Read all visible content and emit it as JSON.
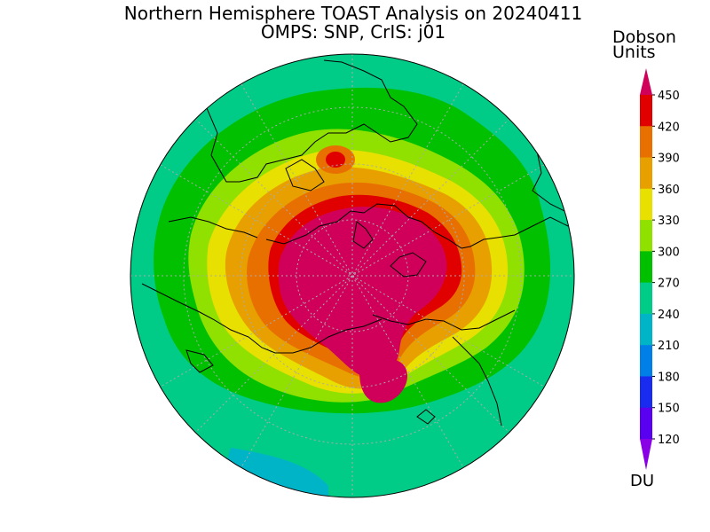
{
  "map": {
    "title_line1": "Northern Hemisphere TOAST Analysis on 20240411",
    "title_line2": "OMPS: SNP, CrIS: j01",
    "projection": "north-polar-stereographic",
    "ozone_classes": [
      {
        "label": "120",
        "color": "#8a00e6"
      },
      {
        "label": "150",
        "color": "#5a00f0"
      },
      {
        "label": "180",
        "color": "#1a2bf0"
      },
      {
        "label": "210",
        "color": "#0080e6"
      },
      {
        "label": "240",
        "color": "#00b4c8"
      },
      {
        "label": "270",
        "color": "#00cc88"
      },
      {
        "label": "300",
        "color": "#00c000"
      },
      {
        "label": "330",
        "color": "#90e000"
      },
      {
        "label": "360",
        "color": "#e8e000"
      },
      {
        "label": "390",
        "color": "#e8a000"
      },
      {
        "label": "420",
        "color": "#e87000"
      },
      {
        "label": "450",
        "color": "#e00000"
      }
    ],
    "above_max_color": "#d0005a"
  },
  "colorbar": {
    "title_line1": "Dobson",
    "title_line2": "Units",
    "unit": "DU",
    "tick_labels": [
      "120",
      "150",
      "180",
      "210",
      "240",
      "270",
      "300",
      "330",
      "360",
      "390",
      "420",
      "450"
    ]
  }
}
